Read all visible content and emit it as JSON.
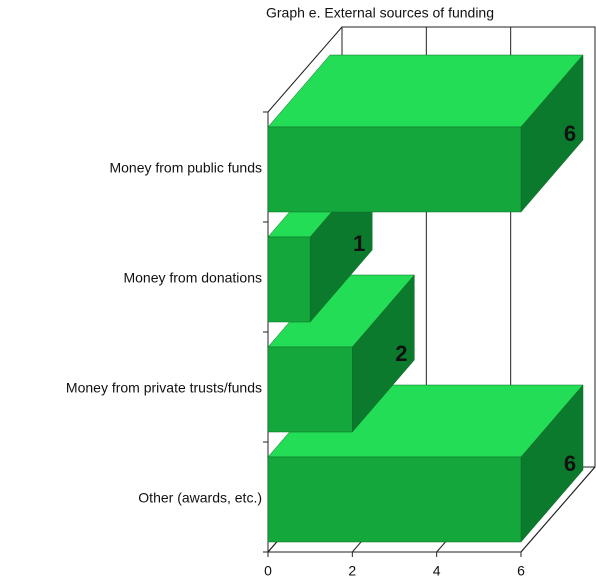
{
  "chart_data": {
    "type": "bar3d",
    "title": "Graph e. External sources of funding",
    "categories": [
      "Money from public funds",
      "Money from donations",
      "Money from private trusts/funds",
      "Other (awards, etc.)"
    ],
    "values": [
      6,
      1,
      2,
      6
    ],
    "color": "#14a83c",
    "xlim": [
      0,
      6
    ],
    "xticks": [
      0,
      2,
      4,
      6
    ],
    "grid": true
  }
}
